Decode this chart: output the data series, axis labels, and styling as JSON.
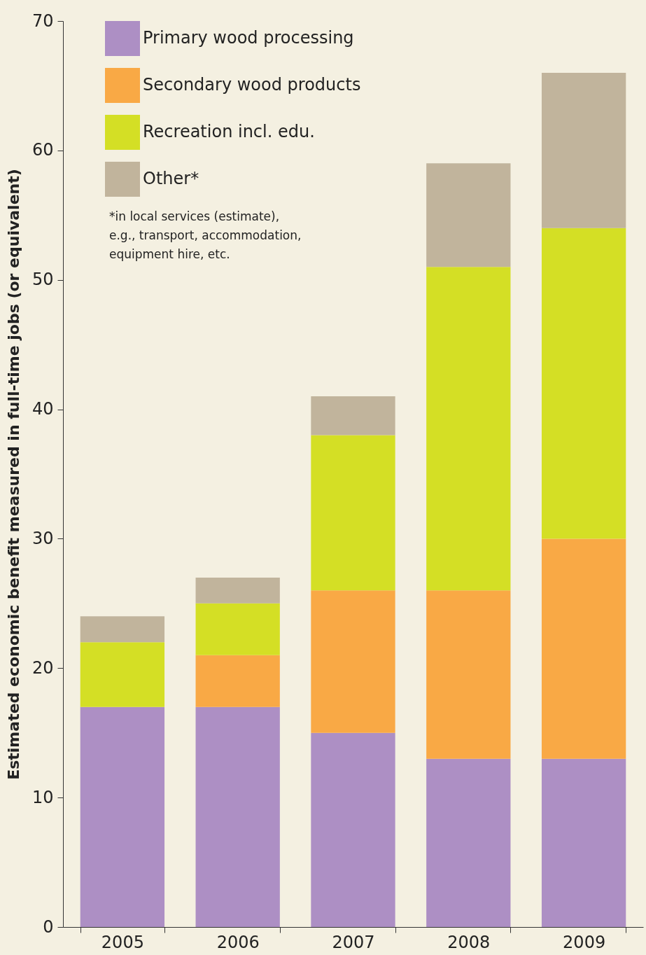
{
  "chart_data": {
    "type": "bar",
    "stacked": true,
    "ylabel": "Estimated economic benefit measured in full-time jobs (or equivalent)",
    "categories": [
      "2005",
      "2006",
      "2007",
      "2008",
      "2009"
    ],
    "series": [
      {
        "name": "Primary wood processing",
        "color": "#ad8fc4",
        "values": [
          17,
          17,
          15,
          13,
          13
        ]
      },
      {
        "name": "Secondary wood products",
        "color": "#f9a945",
        "values": [
          0,
          4,
          11,
          13,
          17
        ]
      },
      {
        "name": "Recreation incl. edu.",
        "color": "#d4df25",
        "values": [
          5,
          4,
          12,
          25,
          24
        ]
      },
      {
        "name": "Other*",
        "color": "#c1b49c",
        "values": [
          2,
          2,
          3,
          8,
          12
        ]
      }
    ],
    "ylim": [
      0,
      70
    ],
    "yticks": [
      0,
      10,
      20,
      30,
      40,
      50,
      60,
      70
    ],
    "grid": false,
    "legend": "top left",
    "annotations": [
      "*in local services (estimate),\ne.g., transport, accommodation,\nequipment hire, etc."
    ]
  }
}
